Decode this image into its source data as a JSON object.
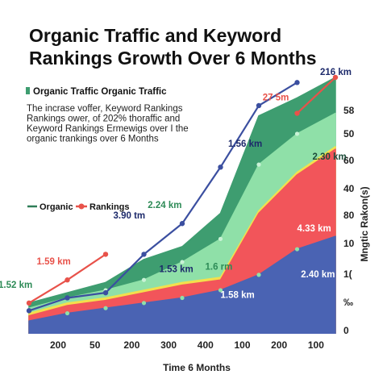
{
  "chart_data": {
    "type": "area",
    "title": "Organic Traffic and Keyword Rankings Growth Over 6 Months",
    "subtitle_legend": "Organic Traffic Organic Traffic",
    "description": "The incrase voffer, Keyword Rankings Rankings ower, of 202% thoraffic and Keyword Rankings Ermewigs over I the organic trankings over 6 Months",
    "xlabel": "Time 6 Months",
    "ylabel": "Mngtic Rakon(s)",
    "x_tick_labels": [
      "200",
      "50",
      "200",
      "300",
      "400",
      "100",
      "200",
      "100"
    ],
    "y_tick_labels": [
      "58",
      "50",
      "60",
      "40",
      "80",
      "10",
      "1(",
      "‰",
      "0"
    ],
    "legend": [
      {
        "label": "Organic",
        "color": "#2e7d57"
      },
      {
        "label": "Rankings",
        "color": "#e8524a"
      }
    ],
    "x": [
      0,
      1,
      2,
      3,
      4,
      5,
      6,
      7,
      8
    ],
    "ylim": [
      0,
      100
    ],
    "stacked_layers": [
      {
        "name": "base",
        "color": "#4a63b3",
        "values": [
          5,
          8,
          10,
          12,
          14,
          17,
          23,
          33,
          38
        ]
      },
      {
        "name": "red",
        "color": "#f2555a",
        "values": [
          7,
          11,
          13,
          16,
          19,
          21,
          47,
          62,
          72
        ]
      },
      {
        "name": "yellow-edge",
        "color": "#f3e04c",
        "values": [
          8,
          12,
          14,
          17,
          20,
          22,
          48,
          63,
          73
        ]
      },
      {
        "name": "light-green",
        "color": "#8fe0a8",
        "values": [
          10,
          14,
          17,
          21,
          28,
          37,
          66,
          78,
          86
        ]
      },
      {
        "name": "dark-green",
        "color": "#3e9d70",
        "values": [
          12,
          16,
          20,
          29,
          34,
          47,
          85,
          92,
          100
        ]
      }
    ],
    "series": [
      {
        "name": "Organic",
        "color": "#3b4fa0",
        "values": [
          9,
          14,
          16,
          31,
          43,
          65,
          89,
          98,
          null
        ]
      },
      {
        "name": "Rankings",
        "color": "#e8524a",
        "values": [
          12,
          21,
          31,
          null,
          null,
          null,
          null,
          86,
          100
        ]
      }
    ],
    "annotations": [
      {
        "text": "216 km",
        "color": "#1d2a6b",
        "x": 7.6,
        "y": 101
      },
      {
        "text": "27 5m",
        "color": "#e8524a",
        "x": 6.1,
        "y": 91
      },
      {
        "text": "1.56 km",
        "color": "#1d2a6b",
        "x": 5.2,
        "y": 73
      },
      {
        "text": "2.30 km",
        "color": "#1d4d3a",
        "x": 7.4,
        "y": 68
      },
      {
        "text": "2.24 km",
        "color": "#2e8b57",
        "x": 3.1,
        "y": 49
      },
      {
        "text": "3.90 tm",
        "color": "#1d2a6b",
        "x": 2.2,
        "y": 45
      },
      {
        "text": "4.33 km",
        "color": "#ffffff",
        "x": 7.0,
        "y": 40
      },
      {
        "text": "1.59 km",
        "color": "#e8524a",
        "x": 0.2,
        "y": 27
      },
      {
        "text": "1.53 km",
        "color": "#1d2a6b",
        "x": 3.4,
        "y": 24
      },
      {
        "text": "1.6 rm",
        "color": "#2e8b57",
        "x": 4.6,
        "y": 25
      },
      {
        "text": "1.52 km",
        "color": "#2e8b57",
        "x": -0.8,
        "y": 18
      },
      {
        "text": "2.40 km",
        "color": "#ffffff",
        "x": 7.1,
        "y": 22
      },
      {
        "text": "1.58 km",
        "color": "#ffffff",
        "x": 5.0,
        "y": 14
      }
    ]
  }
}
